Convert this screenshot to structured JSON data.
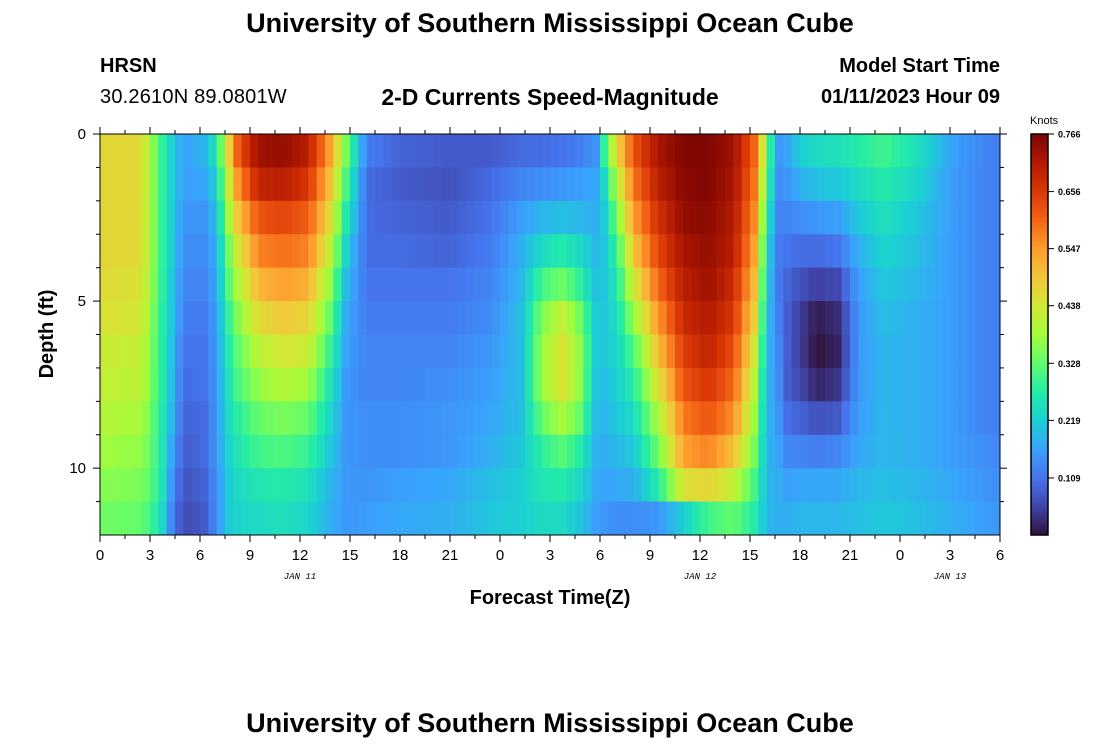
{
  "header": {
    "title": "University of Southern Mississippi Ocean Cube",
    "station": "HRSN",
    "coordinates": "30.2610N  89.0801W",
    "model_start_label": "Model Start Time",
    "model_start_value": "01/11/2023 Hour 09"
  },
  "footer": {
    "title": "University of Southern Mississippi Ocean Cube"
  },
  "chart_data": {
    "type": "heatmap",
    "title": "2-D Currents Speed-Magnitude",
    "xlabel": "Forecast Time(Z)",
    "ylabel": "Depth (ft)",
    "colorbar_unit": "Knots",
    "colorbar_ticks": [
      0.766,
      0.656,
      0.547,
      0.438,
      0.328,
      0.219,
      0.109
    ],
    "colorbar_range": [
      0,
      0.766
    ],
    "colormap": [
      "#30123b",
      "#4145ab",
      "#4675ed",
      "#39a2fc",
      "#1bcfd4",
      "#24eca6",
      "#61fc6c",
      "#a4fc3b",
      "#d1e834",
      "#f3c63a",
      "#fe9b2d",
      "#f36315",
      "#d93806",
      "#b11901",
      "#7a0402"
    ],
    "x_hours_range": [
      0,
      54
    ],
    "x_tick_labels": [
      "0",
      "3",
      "6",
      "9",
      "12",
      "15",
      "18",
      "21",
      "0",
      "3",
      "6",
      "9",
      "12",
      "15",
      "18",
      "21",
      "0",
      "3",
      "6"
    ],
    "day_labels": [
      {
        "label": "JAN 11",
        "at_hour": 12
      },
      {
        "label": "JAN 12",
        "at_hour": 36
      },
      {
        "label": "JAN 13",
        "at_hour": 51
      }
    ],
    "y_range": [
      0,
      12
    ],
    "y_tick_labels": [
      "0",
      "5",
      "10"
    ],
    "y_tick_values": [
      0,
      5,
      10
    ],
    "depths": [
      0.5,
      1.5,
      2.5,
      3.5,
      4.5,
      5.5,
      6.5,
      7.5,
      8.5,
      9.5,
      10.5,
      11.5
    ],
    "profiles": [
      {
        "hour": 0.0,
        "values": [
          0.47,
          0.47,
          0.47,
          0.47,
          0.46,
          0.45,
          0.43,
          0.42,
          0.4,
          0.38,
          0.36,
          0.34
        ]
      },
      {
        "hour": 2.5,
        "values": [
          0.46,
          0.46,
          0.46,
          0.46,
          0.45,
          0.44,
          0.42,
          0.41,
          0.39,
          0.37,
          0.35,
          0.33
        ]
      },
      {
        "hour": 3.6,
        "values": [
          0.3,
          0.3,
          0.3,
          0.3,
          0.3,
          0.29,
          0.29,
          0.29,
          0.28,
          0.28,
          0.28,
          0.26
        ]
      },
      {
        "hour": 4.3,
        "values": [
          0.22,
          0.22,
          0.22,
          0.22,
          0.21,
          0.21,
          0.2,
          0.2,
          0.19,
          0.17,
          0.15,
          0.13
        ]
      },
      {
        "hour": 5.0,
        "values": [
          0.16,
          0.16,
          0.15,
          0.14,
          0.13,
          0.12,
          0.11,
          0.1,
          0.09,
          0.08,
          0.07,
          0.06
        ]
      },
      {
        "hour": 6.3,
        "values": [
          0.19,
          0.17,
          0.15,
          0.14,
          0.13,
          0.12,
          0.11,
          0.11,
          0.1,
          0.1,
          0.09,
          0.08
        ]
      },
      {
        "hour": 7.0,
        "values": [
          0.26,
          0.22,
          0.2,
          0.18,
          0.17,
          0.16,
          0.16,
          0.15,
          0.15,
          0.15,
          0.14,
          0.14
        ]
      },
      {
        "hour": 7.6,
        "values": [
          0.44,
          0.4,
          0.36,
          0.32,
          0.3,
          0.27,
          0.25,
          0.24,
          0.23,
          0.22,
          0.21,
          0.21
        ]
      },
      {
        "hour": 8.3,
        "values": [
          0.62,
          0.56,
          0.5,
          0.44,
          0.4,
          0.36,
          0.33,
          0.31,
          0.28,
          0.26,
          0.24,
          0.23
        ]
      },
      {
        "hour": 9.5,
        "values": [
          0.73,
          0.69,
          0.62,
          0.57,
          0.51,
          0.46,
          0.41,
          0.37,
          0.33,
          0.3,
          0.26,
          0.24
        ]
      },
      {
        "hour": 11.0,
        "values": [
          0.74,
          0.7,
          0.64,
          0.59,
          0.54,
          0.49,
          0.44,
          0.4,
          0.35,
          0.31,
          0.27,
          0.25
        ]
      },
      {
        "hour": 12.5,
        "values": [
          0.7,
          0.66,
          0.61,
          0.57,
          0.52,
          0.47,
          0.43,
          0.38,
          0.33,
          0.29,
          0.25,
          0.23
        ]
      },
      {
        "hour": 13.8,
        "values": [
          0.54,
          0.5,
          0.46,
          0.42,
          0.37,
          0.33,
          0.29,
          0.26,
          0.23,
          0.21,
          0.19,
          0.18
        ]
      },
      {
        "hour": 14.8,
        "values": [
          0.34,
          0.3,
          0.26,
          0.22,
          0.19,
          0.17,
          0.16,
          0.15,
          0.15,
          0.15,
          0.15,
          0.15
        ]
      },
      {
        "hour": 16.0,
        "values": [
          0.12,
          0.1,
          0.1,
          0.1,
          0.11,
          0.12,
          0.13,
          0.13,
          0.14,
          0.14,
          0.15,
          0.16
        ]
      },
      {
        "hour": 18.0,
        "values": [
          0.09,
          0.08,
          0.09,
          0.1,
          0.11,
          0.12,
          0.13,
          0.13,
          0.14,
          0.14,
          0.16,
          0.17
        ]
      },
      {
        "hour": 21.0,
        "values": [
          0.08,
          0.07,
          0.08,
          0.09,
          0.11,
          0.12,
          0.13,
          0.14,
          0.15,
          0.15,
          0.17,
          0.18
        ]
      },
      {
        "hour": 23.5,
        "values": [
          0.08,
          0.1,
          0.11,
          0.12,
          0.13,
          0.14,
          0.15,
          0.16,
          0.17,
          0.18,
          0.2,
          0.21
        ]
      },
      {
        "hour": 25.3,
        "values": [
          0.1,
          0.13,
          0.16,
          0.18,
          0.19,
          0.2,
          0.2,
          0.2,
          0.2,
          0.21,
          0.22,
          0.22
        ]
      },
      {
        "hour": 26.5,
        "values": [
          0.1,
          0.14,
          0.19,
          0.24,
          0.3,
          0.35,
          0.37,
          0.37,
          0.33,
          0.28,
          0.26,
          0.24
        ]
      },
      {
        "hour": 27.7,
        "values": [
          0.11,
          0.15,
          0.2,
          0.27,
          0.34,
          0.42,
          0.45,
          0.45,
          0.39,
          0.32,
          0.27,
          0.24
        ]
      },
      {
        "hour": 28.7,
        "values": [
          0.12,
          0.16,
          0.19,
          0.24,
          0.29,
          0.35,
          0.38,
          0.38,
          0.34,
          0.28,
          0.24,
          0.21
        ]
      },
      {
        "hour": 29.8,
        "values": [
          0.15,
          0.17,
          0.18,
          0.19,
          0.2,
          0.21,
          0.21,
          0.2,
          0.19,
          0.18,
          0.17,
          0.16
        ]
      },
      {
        "hour": 30.3,
        "values": [
          0.3,
          0.24,
          0.22,
          0.21,
          0.21,
          0.21,
          0.21,
          0.2,
          0.19,
          0.18,
          0.17,
          0.15
        ]
      },
      {
        "hour": 31.0,
        "values": [
          0.46,
          0.4,
          0.34,
          0.29,
          0.26,
          0.24,
          0.23,
          0.22,
          0.21,
          0.19,
          0.17,
          0.14
        ]
      },
      {
        "hour": 32.0,
        "values": [
          0.62,
          0.58,
          0.54,
          0.49,
          0.43,
          0.37,
          0.31,
          0.27,
          0.24,
          0.21,
          0.18,
          0.14
        ]
      },
      {
        "hour": 33.5,
        "values": [
          0.72,
          0.7,
          0.67,
          0.64,
          0.6,
          0.55,
          0.5,
          0.45,
          0.39,
          0.34,
          0.27,
          0.15
        ]
      },
      {
        "hour": 35.0,
        "values": [
          0.76,
          0.75,
          0.74,
          0.72,
          0.7,
          0.68,
          0.65,
          0.62,
          0.58,
          0.54,
          0.45,
          0.22
        ]
      },
      {
        "hour": 36.5,
        "values": [
          0.76,
          0.76,
          0.75,
          0.74,
          0.73,
          0.71,
          0.69,
          0.66,
          0.62,
          0.57,
          0.47,
          0.3
        ]
      },
      {
        "hour": 38.0,
        "values": [
          0.73,
          0.72,
          0.71,
          0.7,
          0.68,
          0.66,
          0.63,
          0.6,
          0.56,
          0.5,
          0.42,
          0.33
        ]
      },
      {
        "hour": 39.3,
        "values": [
          0.6,
          0.58,
          0.56,
          0.53,
          0.5,
          0.47,
          0.43,
          0.4,
          0.37,
          0.34,
          0.3,
          0.27
        ]
      },
      {
        "hour": 40.0,
        "values": [
          0.36,
          0.32,
          0.28,
          0.25,
          0.23,
          0.21,
          0.2,
          0.19,
          0.19,
          0.19,
          0.19,
          0.19
        ]
      },
      {
        "hour": 40.6,
        "values": [
          0.15,
          0.14,
          0.13,
          0.12,
          0.12,
          0.13,
          0.14,
          0.15,
          0.16,
          0.17,
          0.18,
          0.18
        ]
      },
      {
        "hour": 41.3,
        "values": [
          0.17,
          0.15,
          0.13,
          0.11,
          0.09,
          0.08,
          0.08,
          0.08,
          0.1,
          0.13,
          0.16,
          0.18
        ]
      },
      {
        "hour": 42.0,
        "values": [
          0.22,
          0.18,
          0.14,
          0.1,
          0.07,
          0.05,
          0.05,
          0.06,
          0.09,
          0.13,
          0.17,
          0.19
        ]
      },
      {
        "hour": 43.0,
        "values": [
          0.24,
          0.2,
          0.15,
          0.1,
          0.05,
          0.01,
          0.0,
          0.02,
          0.07,
          0.12,
          0.17,
          0.19
        ]
      },
      {
        "hour": 44.3,
        "values": [
          0.25,
          0.21,
          0.16,
          0.11,
          0.06,
          0.03,
          0.02,
          0.04,
          0.08,
          0.13,
          0.17,
          0.19
        ]
      },
      {
        "hour": 45.5,
        "values": [
          0.27,
          0.24,
          0.21,
          0.18,
          0.16,
          0.15,
          0.15,
          0.15,
          0.16,
          0.17,
          0.19,
          0.2
        ]
      },
      {
        "hour": 47.0,
        "values": [
          0.3,
          0.27,
          0.25,
          0.23,
          0.21,
          0.2,
          0.19,
          0.19,
          0.19,
          0.19,
          0.2,
          0.21
        ]
      },
      {
        "hour": 49.0,
        "values": [
          0.25,
          0.23,
          0.21,
          0.2,
          0.19,
          0.18,
          0.18,
          0.18,
          0.18,
          0.18,
          0.19,
          0.2
        ]
      },
      {
        "hour": 51.0,
        "values": [
          0.17,
          0.16,
          0.16,
          0.16,
          0.16,
          0.16,
          0.16,
          0.16,
          0.16,
          0.16,
          0.17,
          0.18
        ]
      },
      {
        "hour": 53.0,
        "values": [
          0.13,
          0.13,
          0.13,
          0.13,
          0.13,
          0.13,
          0.13,
          0.13,
          0.13,
          0.14,
          0.15,
          0.16
        ]
      },
      {
        "hour": 54.0,
        "values": [
          0.12,
          0.12,
          0.12,
          0.12,
          0.12,
          0.12,
          0.12,
          0.12,
          0.12,
          0.13,
          0.14,
          0.15
        ]
      }
    ]
  }
}
